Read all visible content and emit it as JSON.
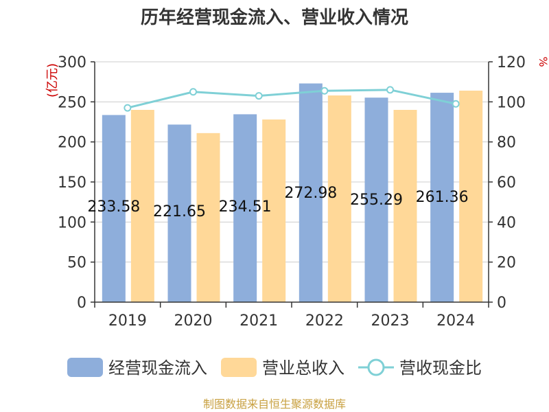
{
  "chart_data": {
    "type": "bar",
    "title": "历年经营现金流入、营业收入情况",
    "categories": [
      "2019",
      "2020",
      "2021",
      "2022",
      "2023",
      "2024"
    ],
    "left_axis": {
      "unit": "(亿元)",
      "ylim": [
        0,
        300
      ],
      "ticks": [
        0,
        50,
        100,
        150,
        200,
        250,
        300
      ]
    },
    "right_axis": {
      "unit": "%",
      "ylim": [
        0,
        120
      ],
      "ticks": [
        0,
        20,
        40,
        60,
        80,
        100,
        120
      ]
    },
    "series": [
      {
        "name": "经营现金流入",
        "type": "bar",
        "axis": "left",
        "color": "#8eaedb",
        "values": [
          233.58,
          221.65,
          234.51,
          272.98,
          255.29,
          261.36
        ],
        "labels": [
          "233.58",
          "221.65",
          "234.51",
          "272.98",
          "255.29",
          "261.36"
        ]
      },
      {
        "name": "营业总收入",
        "type": "bar",
        "axis": "left",
        "color": "#ffd898",
        "values": [
          240,
          211,
          228,
          258,
          240,
          264
        ]
      },
      {
        "name": "营收现金比",
        "type": "line",
        "axis": "right",
        "color": "#7fd0d6",
        "values": [
          97,
          105,
          103,
          105.5,
          106,
          99
        ]
      }
    ],
    "legend_position": "bottom",
    "grid": true,
    "source": "制图数据来自恒生聚源数据库",
    "colors": {
      "left_unit": "#cc0000",
      "right_unit": "#cc0000",
      "source": "#c8a040",
      "axis": "#333333",
      "grid": "#cccccc"
    }
  }
}
